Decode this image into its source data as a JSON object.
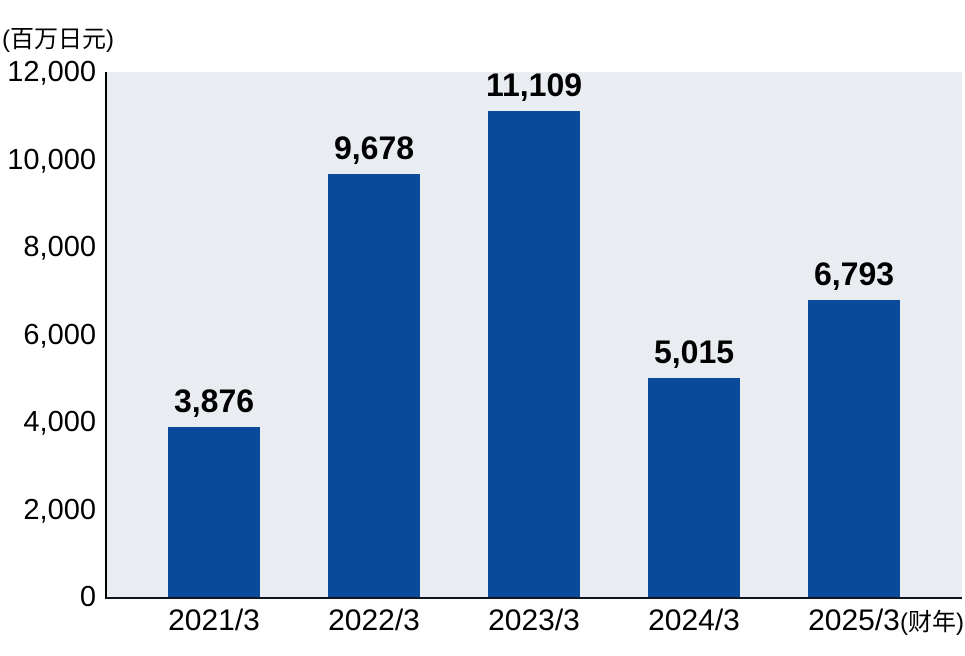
{
  "chart_data": {
    "type": "bar",
    "title": "",
    "unit_label": "(百万日元)",
    "axis_suffix": "(财年)",
    "categories": [
      "2021/3",
      "2022/3",
      "2023/3",
      "2024/3",
      "2025/3"
    ],
    "values": [
      3876,
      9678,
      11109,
      5015,
      6793
    ],
    "value_labels": [
      "3,876",
      "9,678",
      "11,109",
      "5,015",
      "6,793"
    ],
    "ylabel": "",
    "xlabel": "",
    "ylim": [
      0,
      12000
    ],
    "yticks": [
      0,
      2000,
      4000,
      6000,
      8000,
      10000,
      12000
    ],
    "ytick_labels": [
      "0",
      "2,000",
      "4,000",
      "6,000",
      "8,000",
      "10,000",
      "12,000"
    ],
    "grid": false,
    "legend": null,
    "bar_color": "#0a4a9a",
    "plot_bg_color": "#e9ecf0",
    "axis_color": "#000000",
    "text_color": "#000000"
  }
}
